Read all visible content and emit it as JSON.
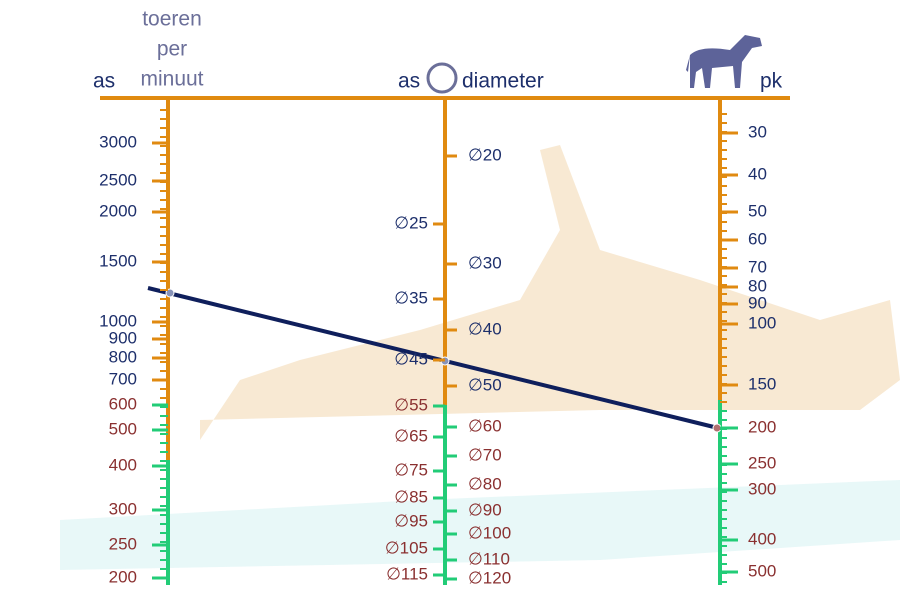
{
  "header": {
    "left": {
      "axis": "as",
      "title": [
        "toeren",
        "per",
        "minuut"
      ]
    },
    "middle": {
      "axis": "as",
      "title": "diameter"
    },
    "right": {
      "axis": "pk"
    }
  },
  "scales": {
    "rpm": [
      "3000",
      "2500",
      "2000",
      "1500",
      "1000",
      "900",
      "800",
      "700",
      "600",
      "500",
      "400",
      "300",
      "250",
      "200"
    ],
    "diameter_left": [
      "∅25",
      "∅35",
      "∅45",
      "∅55",
      "∅65",
      "∅75",
      "∅85",
      "∅95",
      "∅105",
      "∅115"
    ],
    "diameter_right": [
      "∅20",
      "∅30",
      "∅40",
      "∅50",
      "∅60",
      "∅70",
      "∅80",
      "∅90",
      "∅100",
      "∅110",
      "∅120"
    ],
    "power": [
      "30",
      "40",
      "50",
      "60",
      "70",
      "80",
      "90",
      "100",
      "150",
      "200",
      "250",
      "300",
      "400",
      "500"
    ]
  }
}
